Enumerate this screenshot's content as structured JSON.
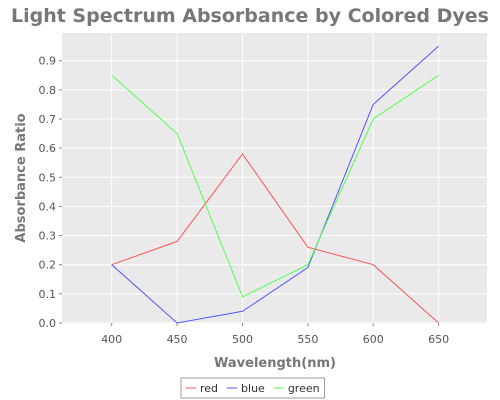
{
  "chart_data": {
    "type": "line",
    "title": "Light Spectrum Absorbance by Colored Dyes",
    "xlabel": "Wavelength(nm)",
    "ylabel": "Absorbance Ratio",
    "x": [
      400,
      450,
      500,
      550,
      600,
      650
    ],
    "x_tick_labels": [
      "400",
      "450",
      "500",
      "550",
      "600",
      "650"
    ],
    "xlim": [
      362,
      687
    ],
    "y_ticks": [
      0.0,
      0.1,
      0.2,
      0.3,
      0.4,
      0.5,
      0.6,
      0.7,
      0.8,
      0.9
    ],
    "y_tick_labels": [
      "0.0",
      "0.1",
      "0.2",
      "0.3",
      "0.4",
      "0.5",
      "0.6",
      "0.7",
      "0.8",
      "0.9"
    ],
    "ylim": [
      0.0,
      0.995
    ],
    "grid": true,
    "legend_position": "bottom",
    "series": [
      {
        "name": "red",
        "color": "#ff5555",
        "values": [
          0.2,
          0.28,
          0.58,
          0.26,
          0.2,
          0.0
        ]
      },
      {
        "name": "blue",
        "color": "#5555ff",
        "values": [
          0.2,
          0.0,
          0.04,
          0.19,
          0.75,
          0.95
        ]
      },
      {
        "name": "green",
        "color": "#55ff55",
        "values": [
          0.85,
          0.65,
          0.09,
          0.2,
          0.7,
          0.85
        ]
      }
    ],
    "colors": {
      "plot_background": "#eaeaea",
      "gridline": "#ffffff",
      "title": "#777777",
      "tick_label": "#555555"
    }
  }
}
